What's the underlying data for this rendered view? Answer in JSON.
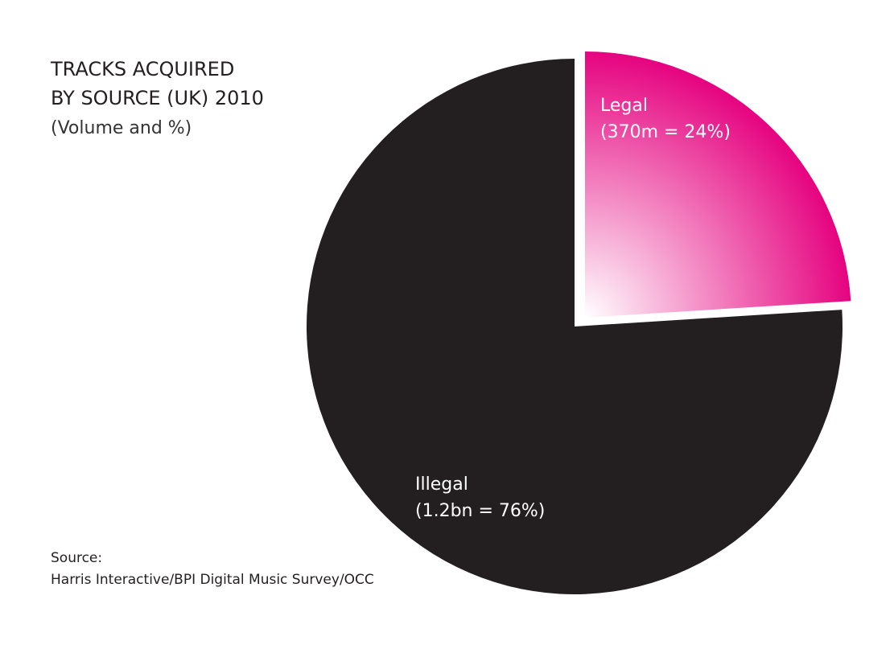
{
  "chart_data": {
    "type": "pie",
    "title": [
      "TRACKS ACQUIRED",
      "BY SOURCE (UK) 2010"
    ],
    "subtitle": "(Volume and %)",
    "categories": [
      "Legal",
      "Illegal"
    ],
    "values": [
      24,
      76
    ],
    "value_labels": [
      "(370m = 24%)",
      "(1.2bn = 76%)"
    ],
    "colors": [
      "#e5007e",
      "#231f20"
    ],
    "source_label": "Source:",
    "source": "Harris Interactive/BPI Digital Music Survey/OCC"
  }
}
